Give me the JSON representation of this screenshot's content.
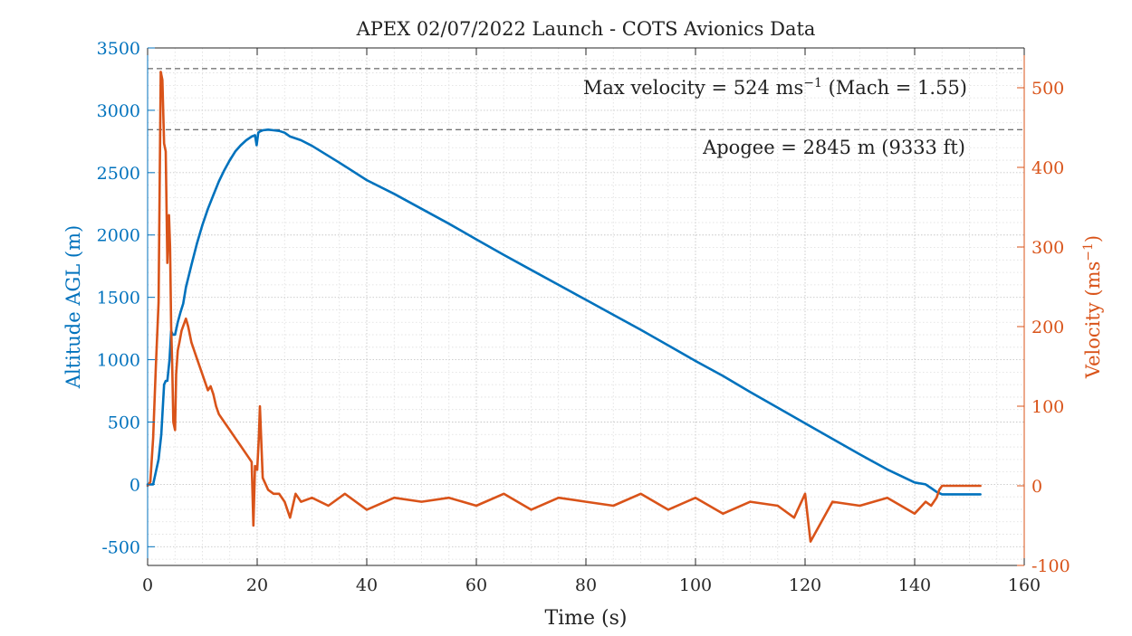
{
  "chart_data": {
    "type": "line",
    "title": "APEX 02/07/2022 Launch - COTS Avionics Data",
    "xlabel": "Time (s)",
    "ylabel_left": "Altitude AGL (m)",
    "ylabel_right": "Velocity (ms",
    "ylabel_right_exp": "−1",
    "ylabel_right_close": ")",
    "xlim": [
      0,
      160
    ],
    "ylim_left": [
      -650,
      3500
    ],
    "ylim_right": [
      -100,
      550
    ],
    "x_ticks": [
      "0",
      "20",
      "40",
      "60",
      "80",
      "100",
      "120",
      "140",
      "160"
    ],
    "y_left_ticks": [
      "-500",
      "0",
      "500",
      "1000",
      "1500",
      "2000",
      "2500",
      "3000",
      "3500"
    ],
    "y_right_ticks": [
      "-100",
      "0",
      "100",
      "200",
      "300",
      "400",
      "500"
    ],
    "grid": true,
    "minor_grid": true,
    "colors": {
      "altitude": "#0072BD",
      "velocity": "#D95319",
      "reference": "#444444"
    },
    "annotations": {
      "max_velocity": {
        "text_pre": "Max velocity = 524 ms",
        "exp": "−1",
        "text_post": " (Mach = 1.55)",
        "value": 524
      },
      "apogee": {
        "text": "Apogee = 2845 m (9333 ft)",
        "value": 2845
      }
    },
    "series": [
      {
        "axis": "left",
        "x": [
          0,
          1,
          1.5,
          2,
          2.5,
          3,
          3.3,
          3.6,
          4,
          4.3,
          4.6,
          5,
          5.5,
          6,
          6.5,
          7,
          8,
          9,
          10,
          11,
          12,
          13,
          14,
          15,
          16,
          17,
          18,
          19,
          19.6,
          19.9,
          20.2,
          20.5,
          21,
          22,
          23,
          24,
          25,
          26,
          28,
          30,
          35,
          40,
          45,
          50,
          55,
          60,
          65,
          70,
          75,
          80,
          85,
          90,
          95,
          100,
          105,
          110,
          115,
          120,
          125,
          130,
          135,
          140,
          142,
          143,
          144,
          145,
          146,
          148,
          150,
          152
        ],
        "y": [
          0,
          0,
          100,
          200,
          400,
          800,
          830,
          830,
          1000,
          1230,
          1200,
          1200,
          1300,
          1380,
          1450,
          1580,
          1760,
          1930,
          2080,
          2210,
          2320,
          2430,
          2520,
          2600,
          2670,
          2720,
          2760,
          2790,
          2800,
          2720,
          2820,
          2830,
          2840,
          2845,
          2840,
          2835,
          2820,
          2790,
          2760,
          2715,
          2580,
          2440,
          2330,
          2210,
          2090,
          1965,
          1840,
          1720,
          1600,
          1480,
          1360,
          1240,
          1115,
          990,
          870,
          740,
          615,
          490,
          365,
          240,
          120,
          15,
          0,
          -30,
          -60,
          -80,
          -80,
          -80,
          -80,
          -80
        ]
      },
      {
        "axis": "right",
        "x": [
          0,
          0.5,
          1,
          1.5,
          2,
          2.4,
          2.7,
          3,
          3.3,
          3.6,
          3.9,
          4.1,
          4.3,
          4.5,
          4.7,
          5,
          5.2,
          5.5,
          5.8,
          6.2,
          7,
          7.4,
          8,
          9,
          10,
          11,
          11.5,
          12,
          12.5,
          13,
          14,
          15,
          16,
          17,
          18,
          19,
          19.3,
          19.6,
          20,
          20.3,
          20.5,
          21,
          22,
          23,
          24,
          25,
          26,
          27,
          28,
          30,
          33,
          36,
          40,
          45,
          50,
          55,
          60,
          65,
          70,
          75,
          80,
          85,
          90,
          95,
          100,
          105,
          110,
          115,
          118,
          120,
          121,
          125,
          130,
          135,
          140,
          142,
          143,
          144,
          144.5,
          145,
          146,
          148,
          150,
          152
        ],
        "y": [
          0,
          5,
          60,
          150,
          230,
          520,
          510,
          430,
          420,
          280,
          340,
          300,
          200,
          150,
          80,
          70,
          140,
          170,
          180,
          195,
          210,
          200,
          180,
          160,
          140,
          120,
          125,
          115,
          100,
          90,
          80,
          70,
          60,
          50,
          40,
          30,
          -50,
          25,
          20,
          60,
          100,
          10,
          -5,
          -10,
          -10,
          -20,
          -40,
          -10,
          -20,
          -15,
          -25,
          -10,
          -30,
          -15,
          -20,
          -15,
          -25,
          -10,
          -30,
          -15,
          -20,
          -25,
          -10,
          -30,
          -15,
          -35,
          -20,
          -25,
          -40,
          -10,
          -70,
          -20,
          -25,
          -15,
          -35,
          -20,
          -25,
          -15,
          -5,
          0,
          0,
          0,
          0,
          0
        ]
      }
    ]
  }
}
